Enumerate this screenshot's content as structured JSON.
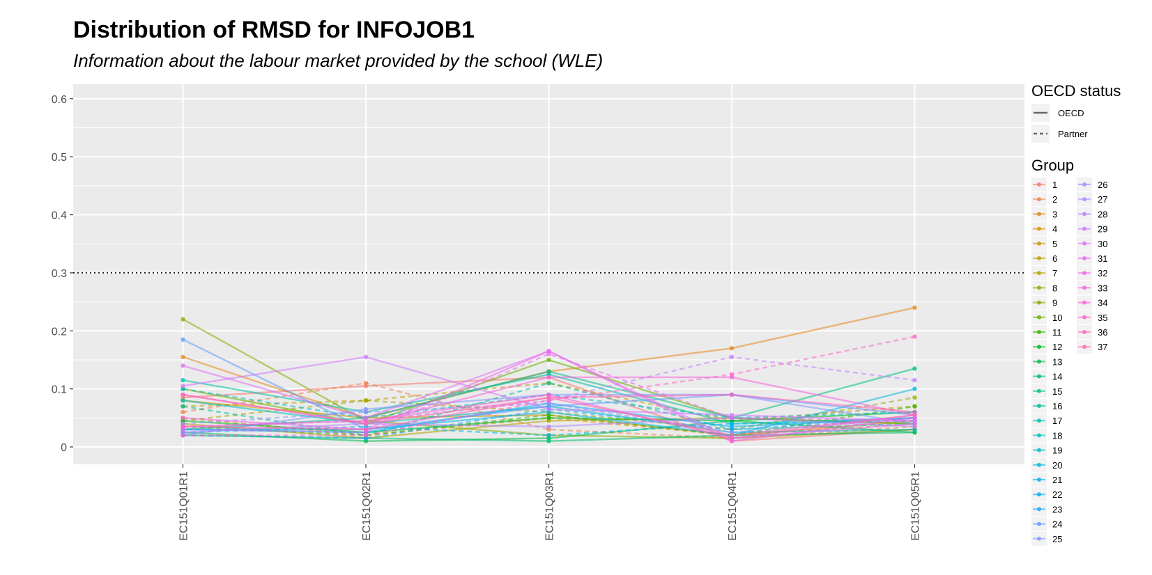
{
  "title": "Distribution of RMSD for INFOJOB1",
  "subtitle": "Information about the labour market provided by the school (WLE)",
  "chart_data": {
    "type": "line",
    "title": "Distribution of RMSD for INFOJOB1",
    "subtitle": "Information about the labour market provided by the school (WLE)",
    "xlabel": "",
    "ylabel": "",
    "categories": [
      "EC151Q01R1",
      "EC151Q02R1",
      "EC151Q03R1",
      "EC151Q04R1",
      "EC151Q05R1"
    ],
    "ylim": [
      -0.03,
      0.625
    ],
    "yticks": [
      0,
      0.1,
      0.2,
      0.3,
      0.4,
      0.5,
      0.6
    ],
    "ytick_labels": [
      "0",
      "0.1",
      "0.2",
      "0.3",
      "0.4",
      "0.5",
      "0.6"
    ],
    "reference_line": {
      "y": 0.3,
      "style": "dotted",
      "color": "#000000"
    },
    "grid": true,
    "legend_position": "right",
    "legend": {
      "linetype_title": "OECD status",
      "linetype_entries": [
        "OECD",
        "Partner"
      ],
      "group_title": "Group"
    },
    "series": [
      {
        "name": "1",
        "status": "OECD",
        "color": "#F8766D",
        "values": [
          0.085,
          0.105,
          0.12,
          0.01,
          0.03
        ]
      },
      {
        "name": "2",
        "status": "Partner",
        "color": "#F07F4F",
        "values": [
          0.06,
          0.11,
          0.03,
          0.015,
          0.035
        ]
      },
      {
        "name": "3",
        "status": "OECD",
        "color": "#E7861B",
        "values": [
          0.155,
          0.05,
          0.13,
          0.17,
          0.24
        ]
      },
      {
        "name": "4",
        "status": "Partner",
        "color": "#DB8E00",
        "values": [
          0.05,
          0.02,
          0.05,
          0.02,
          0.04
        ]
      },
      {
        "name": "5",
        "status": "OECD",
        "color": "#CF9400",
        "values": [
          0.08,
          0.05,
          0.055,
          0.02,
          0.045
        ]
      },
      {
        "name": "6",
        "status": "Partner",
        "color": "#C09B00",
        "values": [
          0.07,
          0.08,
          0.11,
          0.045,
          0.07
        ]
      },
      {
        "name": "7",
        "status": "OECD",
        "color": "#B0A100",
        "values": [
          0.04,
          0.015,
          0.045,
          0.05,
          0.04
        ]
      },
      {
        "name": "8",
        "status": "Partner",
        "color": "#9DA700",
        "values": [
          0.045,
          0.08,
          0.06,
          0.03,
          0.085
        ]
      },
      {
        "name": "9",
        "status": "OECD",
        "color": "#85AD00",
        "values": [
          0.22,
          0.045,
          0.02,
          0.015,
          0.03
        ]
      },
      {
        "name": "10",
        "status": "OECD",
        "color": "#68B100",
        "values": [
          0.1,
          0.04,
          0.15,
          0.05,
          0.04
        ]
      },
      {
        "name": "11",
        "status": "Partner",
        "color": "#39B600",
        "values": [
          0.035,
          0.02,
          0.055,
          0.02,
          0.07
        ]
      },
      {
        "name": "12",
        "status": "OECD",
        "color": "#00B81F",
        "values": [
          0.045,
          0.025,
          0.05,
          0.045,
          0.06
        ]
      },
      {
        "name": "13",
        "status": "OECD",
        "color": "#00BB4E",
        "values": [
          0.025,
          0.01,
          0.015,
          0.045,
          0.025
        ]
      },
      {
        "name": "14",
        "status": "OECD",
        "color": "#00BE6C",
        "values": [
          0.02,
          0.015,
          0.01,
          0.02,
          0.025
        ]
      },
      {
        "name": "15",
        "status": "OECD",
        "color": "#00BF83",
        "values": [
          0.03,
          0.05,
          0.13,
          0.05,
          0.135
        ]
      },
      {
        "name": "16",
        "status": "Partner",
        "color": "#00C097",
        "values": [
          0.07,
          0.02,
          0.11,
          0.03,
          0.04
        ]
      },
      {
        "name": "17",
        "status": "OECD",
        "color": "#00C1AA",
        "values": [
          0.115,
          0.06,
          0.125,
          0.04,
          0.05
        ]
      },
      {
        "name": "18",
        "status": "OECD",
        "color": "#00C0BB",
        "values": [
          0.08,
          0.04,
          0.07,
          0.025,
          0.03
        ]
      },
      {
        "name": "19",
        "status": "Partner",
        "color": "#00BDCC",
        "values": [
          0.1,
          0.05,
          0.09,
          0.05,
          0.06
        ]
      },
      {
        "name": "20",
        "status": "OECD",
        "color": "#00BADB",
        "values": [
          0.03,
          0.03,
          0.06,
          0.02,
          0.1
        ]
      },
      {
        "name": "21",
        "status": "Partner",
        "color": "#00B4EA",
        "values": [
          0.025,
          0.035,
          0.02,
          0.04,
          0.045
        ]
      },
      {
        "name": "22",
        "status": "OECD",
        "color": "#00ADF6",
        "values": [
          0.03,
          0.025,
          0.075,
          0.035,
          0.05
        ]
      },
      {
        "name": "23",
        "status": "Partner",
        "color": "#22A4FF",
        "values": [
          0.02,
          0.015,
          0.065,
          0.03,
          0.05
        ]
      },
      {
        "name": "24",
        "status": "OECD",
        "color": "#5E9BFF",
        "values": [
          0.185,
          0.03,
          0.07,
          0.09,
          0.055
        ]
      },
      {
        "name": "25",
        "status": "OECD",
        "color": "#7F96FF",
        "values": [
          0.02,
          0.065,
          0.09,
          0.09,
          0.04
        ]
      },
      {
        "name": "26",
        "status": "Partner",
        "color": "#9990FF",
        "values": [
          0.04,
          0.06,
          0.075,
          0.025,
          0.05
        ]
      },
      {
        "name": "27",
        "status": "OECD",
        "color": "#AD88FF",
        "values": [
          0.025,
          0.04,
          0.035,
          0.05,
          0.035
        ]
      },
      {
        "name": "28",
        "status": "Partner",
        "color": "#BF80FF",
        "values": [
          0.035,
          0.045,
          0.08,
          0.155,
          0.115
        ]
      },
      {
        "name": "29",
        "status": "OECD",
        "color": "#CF78FF",
        "values": [
          0.105,
          0.155,
          0.065,
          0.055,
          0.045
        ]
      },
      {
        "name": "30",
        "status": "OECD",
        "color": "#DD71FA",
        "values": [
          0.14,
          0.05,
          0.165,
          0.015,
          0.04
        ]
      },
      {
        "name": "31",
        "status": "Partner",
        "color": "#E76BF3",
        "values": [
          0.03,
          0.025,
          0.16,
          0.05,
          0.045
        ]
      },
      {
        "name": "32",
        "status": "OECD",
        "color": "#F066EA",
        "values": [
          0.05,
          0.03,
          0.165,
          0.01,
          0.05
        ]
      },
      {
        "name": "33",
        "status": "OECD",
        "color": "#F763E0",
        "values": [
          0.09,
          0.04,
          0.12,
          0.12,
          0.055
        ]
      },
      {
        "name": "34",
        "status": "OECD",
        "color": "#FC61D5",
        "values": [
          0.035,
          0.045,
          0.09,
          0.015,
          0.055
        ]
      },
      {
        "name": "35",
        "status": "Partner",
        "color": "#FF62C9",
        "values": [
          0.02,
          0.02,
          0.08,
          0.125,
          0.19
        ]
      },
      {
        "name": "36",
        "status": "OECD",
        "color": "#FF65BC",
        "values": [
          0.035,
          0.03,
          0.085,
          0.09,
          0.06
        ]
      },
      {
        "name": "37",
        "status": "OECD",
        "color": "#FF6AAE",
        "values": [
          0.09,
          0.04,
          0.085,
          0.02,
          0.055
        ]
      }
    ]
  }
}
